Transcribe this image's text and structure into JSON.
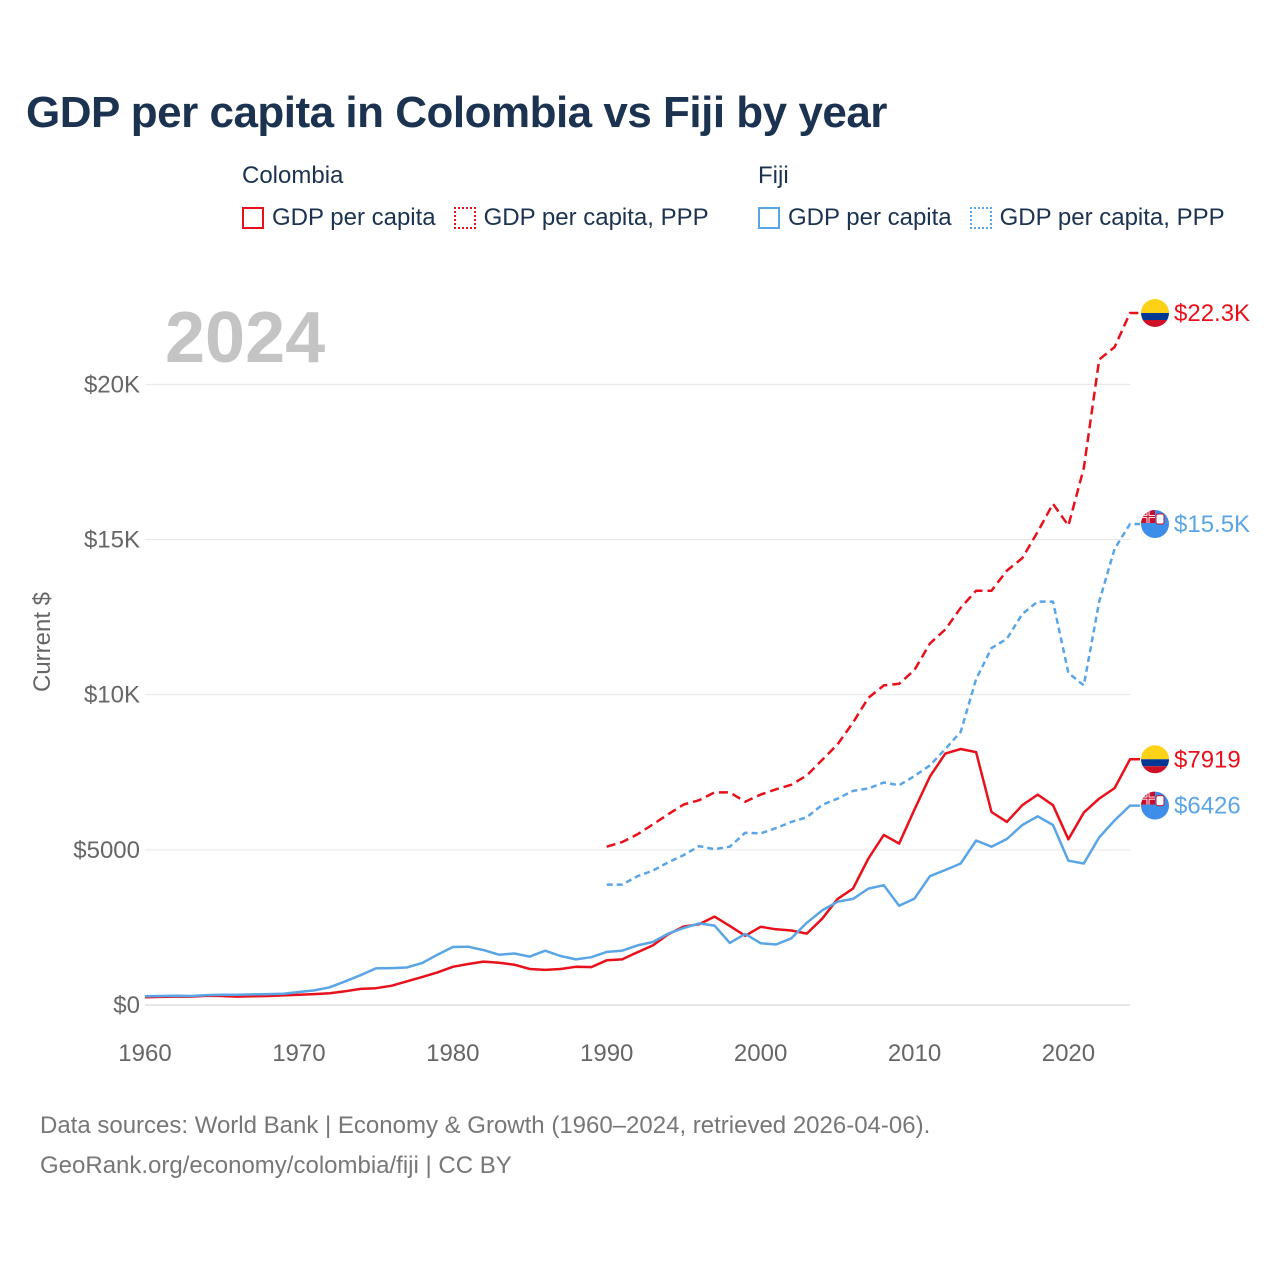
{
  "title": "GDP per capita in Colombia vs Fiji by year",
  "footer": {
    "line1": "Data sources: World Bank | Economy & Growth (1960–2024, retrieved 2026-04-06).",
    "line2": "GeoRank.org/economy/colombia/fiji | CC BY"
  },
  "legend": {
    "groups": [
      {
        "name": "Colombia",
        "color": "#e8111b",
        "items": [
          "GDP per capita",
          "GDP per capita, PPP"
        ]
      },
      {
        "name": "Fiji",
        "color": "#5aa5e6",
        "items": [
          "GDP per capita",
          "GDP per capita, PPP"
        ]
      }
    ]
  },
  "chart_data": {
    "type": "line",
    "title": "GDP per capita in Colombia vs Fiji by year",
    "year_watermark": "2024",
    "ylabel": "Current $",
    "xlabel": "",
    "xlim": [
      1960,
      2024
    ],
    "ylim": [
      0,
      22300
    ],
    "x_ticks": [
      1960,
      1970,
      1980,
      1990,
      2000,
      2010,
      2020
    ],
    "y_ticks": [
      {
        "value": 0,
        "label": "$0"
      },
      {
        "value": 5000,
        "label": "$5000"
      },
      {
        "value": 10000,
        "label": "$10K"
      },
      {
        "value": 15000,
        "label": "$15K"
      },
      {
        "value": 20000,
        "label": "$20K"
      }
    ],
    "grid": true,
    "series": [
      {
        "name": "Colombia GDP per capita",
        "country": "Colombia",
        "color": "#e8111b",
        "dash": "solid",
        "end_label": "$7919",
        "x_start": 1960,
        "values": [
          250,
          260,
          270,
          270,
          300,
          290,
          270,
          280,
          290,
          310,
          330,
          350,
          380,
          440,
          520,
          540,
          620,
          760,
          900,
          1050,
          1230,
          1320,
          1400,
          1360,
          1300,
          1160,
          1130,
          1160,
          1230,
          1220,
          1440,
          1470,
          1700,
          1920,
          2280,
          2530,
          2600,
          2850,
          2550,
          2230,
          2520,
          2440,
          2400,
          2300,
          2780,
          3420,
          3750,
          4720,
          5480,
          5200,
          6300,
          7360,
          8100,
          8250,
          8150,
          6220,
          5900,
          6440,
          6780,
          6440,
          5340,
          6200,
          6650,
          6990,
          7919
        ]
      },
      {
        "name": "Colombia GDP per capita, PPP",
        "country": "Colombia",
        "color": "#e8111b",
        "dash": "dashed",
        "end_label": "$22.3K",
        "x_start": 1990,
        "values": [
          5100,
          5250,
          5500,
          5820,
          6150,
          6460,
          6600,
          6850,
          6850,
          6550,
          6780,
          6950,
          7100,
          7400,
          7900,
          8400,
          9100,
          9900,
          10300,
          10350,
          10800,
          11650,
          12100,
          12800,
          13350,
          13350,
          14000,
          14400,
          15250,
          16150,
          15450,
          17300,
          20800,
          21200,
          22300
        ]
      },
      {
        "name": "Fiji GDP per capita",
        "country": "Fiji",
        "color": "#5aa5e6",
        "dash": "solid",
        "end_label": "$6426",
        "x_start": 1960,
        "values": [
          280,
          290,
          300,
          290,
          320,
          330,
          330,
          340,
          350,
          360,
          420,
          470,
          570,
          760,
          960,
          1180,
          1190,
          1210,
          1350,
          1620,
          1870,
          1880,
          1770,
          1620,
          1660,
          1560,
          1750,
          1580,
          1470,
          1540,
          1710,
          1750,
          1920,
          2030,
          2300,
          2480,
          2630,
          2560,
          2000,
          2290,
          1990,
          1950,
          2150,
          2650,
          3050,
          3330,
          3420,
          3750,
          3860,
          3200,
          3430,
          4150,
          4350,
          4560,
          5300,
          5100,
          5350,
          5800,
          6080,
          5800,
          4650,
          4560,
          5400,
          5950,
          6426
        ]
      },
      {
        "name": "Fiji GDP per capita, PPP",
        "country": "Fiji",
        "color": "#5aa5e6",
        "dash": "dotted",
        "end_label": "$15.5K",
        "x_start": 1990,
        "values": [
          3880,
          3880,
          4150,
          4330,
          4600,
          4830,
          5120,
          5020,
          5100,
          5550,
          5530,
          5700,
          5900,
          6050,
          6450,
          6650,
          6900,
          6980,
          7170,
          7080,
          7380,
          7720,
          8250,
          8800,
          10500,
          11500,
          11800,
          12600,
          13000,
          13000,
          10700,
          10300,
          13000,
          14700,
          15500
        ]
      }
    ]
  }
}
